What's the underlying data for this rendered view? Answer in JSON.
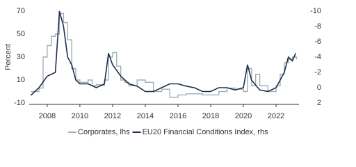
{
  "chart_data": {
    "type": "line",
    "y_label": "Percent",
    "xlim": [
      2006.9,
      2023.4
    ],
    "xticks": [
      2008,
      2010,
      2012,
      2014,
      2016,
      2018,
      2020,
      2022
    ],
    "ylim": [
      -10,
      70
    ],
    "yticks": [
      -10,
      10,
      30,
      50,
      70
    ],
    "y2lim": [
      2,
      -10
    ],
    "y2ticks": [
      -10,
      -8,
      -6,
      -4,
      -2,
      0,
      2
    ],
    "legend": "bottom",
    "series": [
      {
        "name": "Corporates, lhs",
        "color": "#9fb0b8",
        "shape": "step",
        "x": [
          2007,
          2007.5,
          2007.75,
          2008,
          2008.25,
          2008.5,
          2008.75,
          2009,
          2009.25,
          2009.5,
          2009.75,
          2010,
          2010.25,
          2010.5,
          2010.75,
          2011,
          2011.25,
          2011.5,
          2011.75,
          2012,
          2012.25,
          2012.5,
          2012.75,
          2013,
          2013.5,
          2014,
          2014.5,
          2015,
          2015.5,
          2016,
          2016.5,
          2017,
          2017.5,
          2018,
          2018.5,
          2019,
          2019.5,
          2020,
          2020.25,
          2020.5,
          2020.75,
          2021,
          2021.5,
          2022,
          2022.25,
          2022.5,
          2022.75,
          2023,
          2023.25
        ],
        "values": [
          0,
          3,
          30,
          40,
          48,
          50,
          68,
          60,
          45,
          20,
          10,
          8,
          8,
          10,
          5,
          6,
          5,
          10,
          30,
          34,
          22,
          10,
          8,
          5,
          10,
          8,
          0,
          2,
          -5,
          -3,
          -2,
          -2,
          -3,
          -3,
          0,
          3,
          2,
          0,
          20,
          5,
          15,
          5,
          0,
          5,
          15,
          25,
          28,
          30,
          28
        ]
      },
      {
        "name": "EU20 Financial Conditions Index, rhs",
        "color": "#1f2d4e",
        "axis": "y2",
        "shape": "linear",
        "x": [
          2007,
          2007.5,
          2008,
          2008.5,
          2008.75,
          2009,
          2009.25,
          2009.5,
          2009.75,
          2010,
          2010.5,
          2011,
          2011.5,
          2011.75,
          2012,
          2012.5,
          2013,
          2013.5,
          2014,
          2014.5,
          2015,
          2015.5,
          2016,
          2016.5,
          2017,
          2017.5,
          2018,
          2018.5,
          2019,
          2019.5,
          2020,
          2020.25,
          2020.5,
          2021,
          2021.5,
          2022,
          2022.25,
          2022.5,
          2022.75,
          2023,
          2023.2
        ],
        "values": [
          1,
          0,
          -1.5,
          -2,
          -10,
          -8,
          -4,
          -3,
          -1,
          -0.5,
          -0.5,
          0,
          -0.5,
          -4.5,
          -3,
          -1.5,
          -0.5,
          -0.2,
          0.5,
          0.5,
          0,
          -0.5,
          -0.5,
          -0.2,
          0,
          0.5,
          0.5,
          0,
          0,
          0.3,
          0,
          -3,
          -1,
          0.3,
          0.5,
          0,
          -1,
          -2,
          -4,
          -3.5,
          -4.5
        ]
      }
    ]
  }
}
